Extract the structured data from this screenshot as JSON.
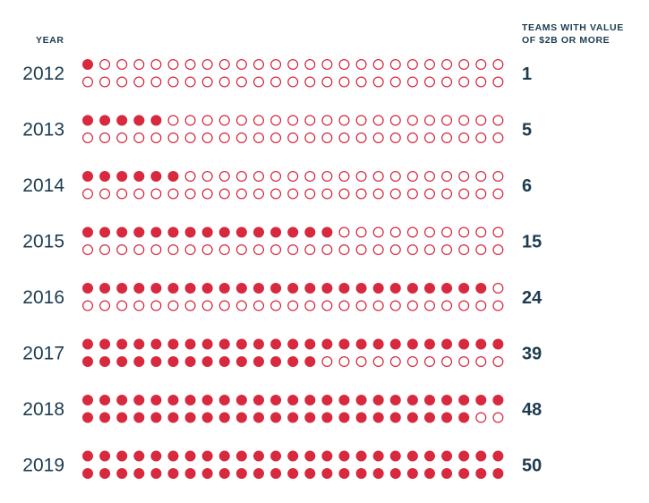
{
  "header": {
    "year_label": "YEAR",
    "value_label_line1": "TEAMS WITH VALUE",
    "value_label_line2": "OF $2B OR MORE"
  },
  "colors": {
    "dot": "#d8293f",
    "text": "#1d3c50",
    "background": "#ffffff"
  },
  "chart_data": {
    "type": "dot-matrix",
    "title": "",
    "xlabel": "YEAR",
    "ylabel": "TEAMS WITH VALUE OF $2B OR MORE",
    "categories": [
      "2012",
      "2013",
      "2014",
      "2015",
      "2016",
      "2017",
      "2018",
      "2019"
    ],
    "values": [
      1,
      5,
      6,
      15,
      24,
      39,
      48,
      50
    ],
    "dots_per_row": 25,
    "rows_per_year": 2,
    "total_dots": 50
  }
}
